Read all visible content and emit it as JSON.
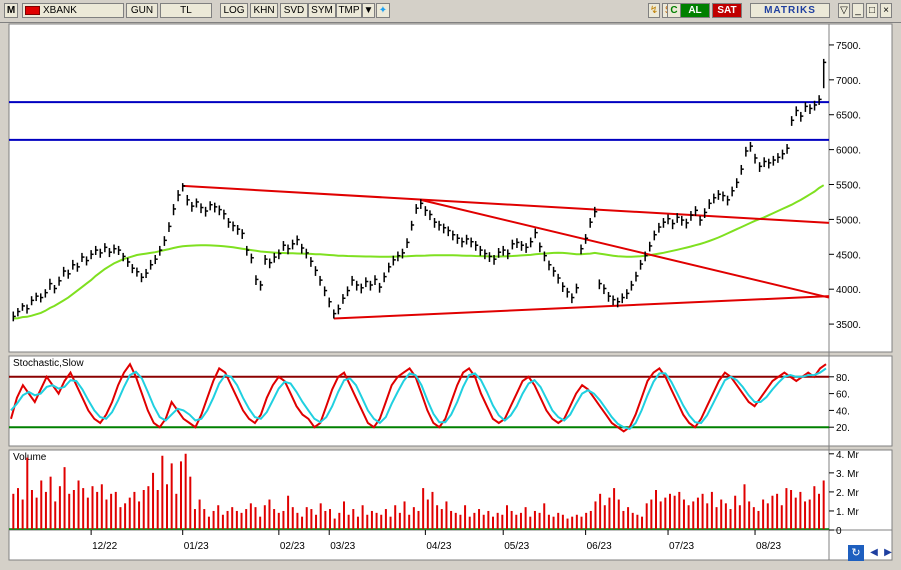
{
  "toolbar": {
    "m_label": "M",
    "symbol": "XBANK",
    "period": "GUN",
    "currency": "TL",
    "log": "LOG",
    "khn": "KHN",
    "svd": "SVD",
    "sym": "SYM",
    "tmp": "TMP",
    "al": "AL",
    "sat": "SAT",
    "logo": "MATRIKS"
  },
  "colors": {
    "price": "#000000",
    "ma": "#7fe020",
    "trend": "#e00000",
    "hline": "#0000c0",
    "stoch_k": "#e00000",
    "stoch_d": "#20d0e0",
    "volume": "#e00000",
    "stoch_upper": "#8b0000",
    "stoch_lower": "#008000"
  },
  "chart_data": [
    {
      "type": "candlestick",
      "title": "",
      "y_ticks": [
        3500,
        4000,
        4500,
        5000,
        5500,
        6000,
        6500,
        7000,
        7500
      ],
      "y_tick_labels": [
        "3500.",
        "4000.",
        "4500.",
        "5000.",
        "5500.",
        "6000.",
        "6500.",
        "7000.",
        "7500."
      ],
      "ylim": [
        3100,
        7800
      ],
      "x_tick_labels": [
        "12/22",
        "01/23",
        "02/23",
        "03/23",
        "04/23",
        "05/23",
        "06/23",
        "07/23",
        "08/23"
      ],
      "close": [
        3610,
        3680,
        3760,
        3720,
        3840,
        3900,
        3880,
        3950,
        4080,
        4010,
        4120,
        4260,
        4220,
        4350,
        4320,
        4460,
        4410,
        4500,
        4560,
        4520,
        4600,
        4530,
        4580,
        4560,
        4470,
        4390,
        4300,
        4250,
        4170,
        4230,
        4350,
        4430,
        4560,
        4700,
        4900,
        5150,
        5350,
        5480,
        5280,
        5190,
        5250,
        5170,
        5120,
        5210,
        5180,
        5140,
        5080,
        4960,
        4910,
        4860,
        4800,
        4560,
        4450,
        4140,
        4060,
        4430,
        4380,
        4460,
        4510,
        4630,
        4580,
        4650,
        4710,
        4590,
        4520,
        4400,
        4270,
        4130,
        3980,
        3820,
        3650,
        3720,
        3870,
        3980,
        4130,
        4060,
        4020,
        4110,
        4060,
        4140,
        4030,
        4180,
        4320,
        4420,
        4480,
        4520,
        4670,
        4920,
        5160,
        5230,
        5130,
        5070,
        4960,
        4920,
        4880,
        4840,
        4780,
        4730,
        4680,
        4720,
        4680,
        4630,
        4560,
        4510,
        4470,
        4430,
        4530,
        4560,
        4510,
        4650,
        4670,
        4630,
        4600,
        4680,
        4810,
        4610,
        4480,
        4350,
        4260,
        4160,
        4040,
        3960,
        3880,
        4020,
        4580,
        4730,
        4960,
        5110,
        4080,
        4010,
        3900,
        3850,
        3820,
        3880,
        3940,
        4060,
        4190,
        4360,
        4480,
        4620,
        4780,
        4890,
        4960,
        5010,
        4940,
        5030,
        4990,
        4950,
        5060,
        5130,
        4990,
        5100,
        5230,
        5310,
        5360,
        5340,
        5280,
        5410,
        5530,
        5720,
        5980,
        6050,
        5880,
        5760,
        5830,
        5810,
        5850,
        5890,
        5940,
        6020,
        6420,
        6560,
        6480,
        6620,
        6590,
        6640,
        6720,
        7250
      ],
      "high": [
        3680,
        3730,
        3800,
        3780,
        3900,
        3950,
        3940,
        4000,
        4150,
        4060,
        4180,
        4320,
        4280,
        4420,
        4380,
        4520,
        4470,
        4560,
        4620,
        4580,
        4660,
        4590,
        4640,
        4620,
        4520,
        4450,
        4360,
        4310,
        4230,
        4290,
        4420,
        4490,
        4620,
        4760,
        4960,
        5220,
        5420,
        5520,
        5350,
        5250,
        5300,
        5230,
        5180,
        5260,
        5240,
        5200,
        5140,
        5020,
        4970,
        4920,
        4860,
        4620,
        4510,
        4200,
        4120,
        4490,
        4440,
        4520,
        4570,
        4690,
        4640,
        4710,
        4770,
        4650,
        4580,
        4460,
        4330,
        4190,
        4040,
        3880,
        3710,
        3780,
        3930,
        4040,
        4190,
        4120,
        4080,
        4170,
        4120,
        4200,
        4090,
        4240,
        4380,
        4480,
        4540,
        4580,
        4730,
        4980,
        5220,
        5290,
        5190,
        5130,
        5020,
        4980,
        4940,
        4900,
        4840,
        4790,
        4740,
        4780,
        4740,
        4690,
        4620,
        4570,
        4530,
        4490,
        4590,
        4620,
        4570,
        4710,
        4730,
        4690,
        4660,
        4740,
        4870,
        4670,
        4540,
        4410,
        4320,
        4220,
        4100,
        4020,
        3940,
        4080,
        4640,
        4790,
        5020,
        5180,
        4140,
        4070,
        3960,
        3910,
        3880,
        3940,
        4000,
        4120,
        4250,
        4420,
        4540,
        4680,
        4840,
        4950,
        5020,
        5070,
        5000,
        5090,
        5050,
        5010,
        5120,
        5190,
        5050,
        5160,
        5290,
        5370,
        5420,
        5400,
        5340,
        5470,
        5590,
        5780,
        6040,
        6110,
        5940,
        5820,
        5890,
        5870,
        5910,
        5950,
        6000,
        6080,
        6480,
        6620,
        6540,
        6680,
        6650,
        6700,
        6780,
        7300
      ],
      "low": [
        3540,
        3610,
        3690,
        3650,
        3770,
        3830,
        3810,
        3880,
        3990,
        3940,
        4050,
        4180,
        4150,
        4280,
        4250,
        4390,
        4340,
        4430,
        4490,
        4450,
        4530,
        4460,
        4510,
        4490,
        4400,
        4320,
        4230,
        4180,
        4100,
        4160,
        4280,
        4360,
        4480,
        4620,
        4820,
        5060,
        5260,
        5400,
        5200,
        5110,
        5170,
        5090,
        5040,
        5130,
        5100,
        5060,
        5000,
        4880,
        4830,
        4780,
        4720,
        4480,
        4370,
        4060,
        3980,
        4350,
        4300,
        4380,
        4430,
        4550,
        4500,
        4570,
        4630,
        4510,
        4440,
        4320,
        4190,
        4050,
        3900,
        3740,
        3580,
        3640,
        3790,
        3900,
        4050,
        3980,
        3940,
        4030,
        3980,
        4060,
        3950,
        4100,
        4240,
        4340,
        4400,
        4440,
        4590,
        4840,
        5080,
        5150,
        5050,
        4990,
        4880,
        4840,
        4800,
        4760,
        4700,
        4650,
        4600,
        4640,
        4600,
        4550,
        4480,
        4430,
        4390,
        4350,
        4450,
        4480,
        4430,
        4570,
        4590,
        4550,
        4520,
        4600,
        4730,
        4530,
        4400,
        4270,
        4180,
        4080,
        3960,
        3880,
        3800,
        3940,
        4500,
        4650,
        4880,
        5030,
        4000,
        3930,
        3820,
        3770,
        3740,
        3800,
        3860,
        3980,
        4110,
        4280,
        4400,
        4540,
        4700,
        4810,
        4880,
        4930,
        4860,
        4950,
        4910,
        4870,
        4980,
        5050,
        4910,
        5020,
        5150,
        5230,
        5280,
        5260,
        5200,
        5330,
        5450,
        5640,
        5900,
        5970,
        5800,
        5680,
        5750,
        5730,
        5770,
        5810,
        5860,
        5940,
        6340,
        6480,
        6400,
        6540,
        6510,
        6560,
        6640,
        6880
      ],
      "ma": [
        3580,
        3585,
        3600,
        3605,
        3620,
        3640,
        3660,
        3690,
        3730,
        3760,
        3800,
        3840,
        3880,
        3930,
        3980,
        4030,
        4080,
        4130,
        4190,
        4240,
        4290,
        4330,
        4370,
        4400,
        4430,
        4450,
        4470,
        4490,
        4500,
        4510,
        4520,
        4530,
        4545,
        4560,
        4575,
        4590,
        4605,
        4615,
        4620,
        4625,
        4628,
        4630,
        4630,
        4628,
        4625,
        4620,
        4615,
        4608,
        4600,
        4590,
        4580,
        4570,
        4560,
        4550,
        4540,
        4535,
        4530,
        4525,
        4520,
        4518,
        4516,
        4514,
        4512,
        4510,
        4508,
        4505,
        4502,
        4500,
        4495,
        4490,
        4485,
        4480,
        4478,
        4476,
        4474,
        4472,
        4470,
        4469,
        4468,
        4467,
        4466,
        4466,
        4466,
        4467,
        4468,
        4470,
        4472,
        4475,
        4478,
        4480,
        4482,
        4484,
        4485,
        4486,
        4486,
        4486,
        4485,
        4484,
        4482,
        4480,
        4478,
        4476,
        4474,
        4472,
        4470,
        4468,
        4468,
        4470,
        4473,
        4476,
        4480,
        4484,
        4488,
        4492,
        4500,
        4505,
        4510,
        4515,
        4520,
        4522,
        4520,
        4515,
        4508,
        4500,
        4502,
        4505,
        4510,
        4520,
        4510,
        4500,
        4490,
        4480,
        4472,
        4468,
        4465,
        4465,
        4468,
        4472,
        4480,
        4488,
        4498,
        4510,
        4522,
        4536,
        4550,
        4565,
        4580,
        4596,
        4612,
        4630,
        4648,
        4668,
        4690,
        4715,
        4740,
        4770,
        4800,
        4830,
        4860,
        4890,
        4920,
        4950,
        4980,
        5005,
        5030,
        5060,
        5090,
        5120,
        5150,
        5180,
        5210,
        5245,
        5280,
        5320,
        5360,
        5400,
        5450,
        5490
      ],
      "horizontal_lines": [
        6680,
        6140
      ],
      "trendlines": [
        {
          "from": [
            37,
            5480
          ],
          "to": [
            225,
            4950
          ]
        },
        {
          "from": [
            89,
            5280
          ],
          "to": [
            225,
            3880
          ]
        },
        {
          "from": [
            70,
            3580
          ],
          "to": [
            225,
            3900
          ]
        }
      ]
    },
    {
      "type": "line",
      "title": "Stochastic,Slow",
      "ylim": [
        0,
        100
      ],
      "y_ticks": [
        20,
        40,
        60,
        80
      ],
      "y_tick_labels": [
        "20.",
        "40.",
        "60.",
        "80."
      ],
      "upper_level": 80,
      "lower_level": 20,
      "series": [
        {
          "values": [
            30,
            55,
            70,
            60,
            50,
            65,
            80,
            70,
            60,
            75,
            85,
            70,
            55,
            40,
            30,
            25,
            35,
            50,
            70,
            85,
            95,
            80,
            60,
            40,
            25,
            20,
            30,
            50,
            40,
            30,
            25,
            20,
            35,
            55,
            75,
            90,
            85,
            70,
            55,
            40,
            30,
            25,
            35,
            55,
            70,
            80,
            75,
            60,
            45,
            35,
            30,
            20,
            25,
            45,
            65,
            80,
            85,
            70,
            55,
            40,
            25,
            20,
            30,
            50,
            70,
            80,
            85,
            90,
            80,
            60,
            40,
            25,
            20,
            30,
            50,
            70,
            85,
            90,
            80,
            60,
            45,
            30,
            25,
            30,
            45,
            60,
            75,
            80,
            70,
            55,
            40,
            30,
            25,
            30,
            45,
            60,
            70,
            65,
            55,
            45,
            35,
            25,
            20,
            15,
            20,
            35,
            55,
            75,
            85,
            90,
            80,
            65,
            50,
            35,
            25,
            20,
            30,
            45,
            60,
            75,
            85,
            80,
            70,
            60,
            50,
            45,
            55,
            65,
            75,
            80,
            85,
            80,
            75,
            80,
            85,
            80,
            90,
            95
          ]
        },
        {
          "values": [
            40,
            48,
            58,
            62,
            58,
            60,
            68,
            70,
            66,
            68,
            76,
            75,
            65,
            52,
            40,
            32,
            30,
            38,
            52,
            68,
            82,
            86,
            78,
            62,
            45,
            32,
            28,
            35,
            42,
            40,
            35,
            28,
            30,
            40,
            55,
            72,
            82,
            80,
            70,
            55,
            42,
            32,
            30,
            38,
            52,
            66,
            74,
            72,
            62,
            50,
            40,
            30,
            26,
            32,
            45,
            62,
            76,
            78,
            70,
            55,
            40,
            30,
            25,
            32,
            48,
            62,
            75,
            84,
            82,
            70,
            52,
            36,
            26,
            26,
            35,
            50,
            68,
            82,
            84,
            76,
            62,
            46,
            34,
            28,
            34,
            45,
            60,
            72,
            76,
            68,
            54,
            40,
            32,
            28,
            35,
            48,
            60,
            64,
            60,
            52,
            42,
            32,
            24,
            20,
            18,
            25,
            40,
            58,
            74,
            84,
            84,
            74,
            60,
            46,
            34,
            26,
            25,
            34,
            48,
            62,
            76,
            80,
            76,
            68,
            58,
            50,
            50,
            56,
            65,
            73,
            80,
            82,
            80,
            80,
            82,
            82,
            85,
            90
          ]
        }
      ]
    },
    {
      "type": "bar",
      "title": "Volume",
      "unit": "Mr",
      "ylim": [
        0,
        4.2
      ],
      "y_ticks": [
        0,
        1,
        2,
        3,
        4
      ],
      "y_tick_labels": [
        "0",
        "1. Mr",
        "2. Mr",
        "3. Mr",
        "4. Mr"
      ],
      "values": [
        1.9,
        2.2,
        1.6,
        3.8,
        2.1,
        1.7,
        2.6,
        2.0,
        2.8,
        1.5,
        2.3,
        3.3,
        1.9,
        2.1,
        2.6,
        2.2,
        1.7,
        2.3,
        2.0,
        2.4,
        1.6,
        1.9,
        2.0,
        1.2,
        1.4,
        1.7,
        2.0,
        1.5,
        2.1,
        2.3,
        3.0,
        2.1,
        3.9,
        2.4,
        3.5,
        1.9,
        3.6,
        4.0,
        2.8,
        1.1,
        1.6,
        1.1,
        0.7,
        1.0,
        1.3,
        0.8,
        1.0,
        1.2,
        1.0,
        0.9,
        1.1,
        1.4,
        1.2,
        0.7,
        1.3,
        1.6,
        1.1,
        0.9,
        1.0,
        1.8,
        1.2,
        0.9,
        0.7,
        1.2,
        1.1,
        0.8,
        1.4,
        1.0,
        1.1,
        0.6,
        0.9,
        1.5,
        0.8,
        1.1,
        0.7,
        1.3,
        0.8,
        1.0,
        0.9,
        0.8,
        1.1,
        0.7,
        1.3,
        0.9,
        1.5,
        0.8,
        1.2,
        1.0,
        2.2,
        1.6,
        2.0,
        1.3,
        1.1,
        1.5,
        1.0,
        0.9,
        0.8,
        1.3,
        0.7,
        0.9,
        1.1,
        0.8,
        1.0,
        0.7,
        0.9,
        0.8,
        1.3,
        1.0,
        0.8,
        0.9,
        1.2,
        0.7,
        1.0,
        0.9,
        1.4,
        0.8,
        0.7,
        0.9,
        0.8,
        0.6,
        0.7,
        0.8,
        0.7,
        0.9,
        1.0,
        1.5,
        1.9,
        1.3,
        1.7,
        2.2,
        1.6,
        1.0,
        1.2,
        0.9,
        0.8,
        0.7,
        1.4,
        1.6,
        2.1,
        1.5,
        1.7,
        1.9,
        1.8,
        2.0,
        1.6,
        1.3,
        1.5,
        1.7,
        1.9,
        1.4,
        2.0,
        1.2,
        1.6,
        1.4,
        1.1,
        1.8,
        1.3,
        2.4,
        1.5,
        1.2,
        1.0,
        1.6,
        1.4,
        1.8,
        1.9,
        1.3,
        2.2,
        2.1,
        1.7,
        2.0,
        1.5,
        1.6,
        2.3,
        1.9,
        2.6
      ]
    }
  ]
}
